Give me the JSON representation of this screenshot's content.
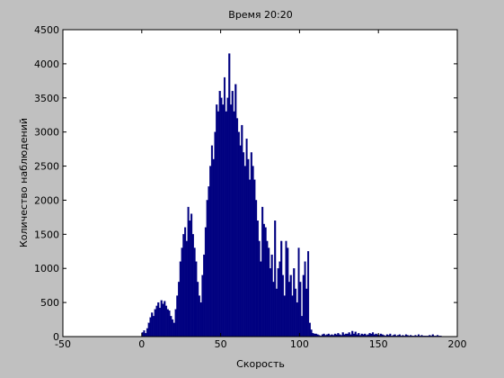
{
  "chart_data": {
    "type": "histogram",
    "title": "Время 20:20",
    "xlabel": "Скорость",
    "ylabel": "Количество наблюдений",
    "color": "#000080",
    "bins": [
      0,
      1,
      2,
      3,
      4,
      5,
      6,
      7,
      8,
      9,
      10,
      11,
      12,
      13,
      14,
      15,
      16,
      17,
      18,
      19,
      20,
      21,
      22,
      23,
      24,
      25,
      26,
      27,
      28,
      29,
      30,
      31,
      32,
      33,
      34,
      35,
      36,
      37,
      38,
      39,
      40,
      41,
      42,
      43,
      44,
      45,
      46,
      47,
      48,
      49,
      50,
      51,
      52,
      53,
      54,
      55,
      56,
      57,
      58,
      59,
      60,
      61,
      62,
      63,
      64,
      65,
      66,
      67,
      68,
      69,
      70,
      71,
      72,
      73,
      74,
      75,
      76,
      77,
      78,
      79,
      80,
      81,
      82,
      83,
      84,
      85,
      86,
      87,
      88,
      89,
      90,
      91,
      92,
      93,
      94,
      95,
      96,
      97,
      98,
      99,
      100,
      101,
      102,
      103,
      104,
      105,
      106,
      107,
      108,
      109,
      110,
      111,
      112,
      113,
      114,
      115,
      116,
      117,
      118,
      119,
      120,
      121,
      122,
      123,
      124,
      125,
      126,
      127,
      128,
      129,
      130,
      131,
      132,
      133,
      134,
      135,
      136,
      137,
      138,
      139,
      140,
      141,
      142,
      143,
      144,
      145,
      146,
      147,
      148,
      149,
      150,
      151,
      152,
      153,
      154,
      155,
      156,
      157,
      158,
      159,
      160,
      161,
      162,
      163,
      164,
      165,
      166,
      167,
      168,
      169,
      170,
      171,
      172,
      173,
      174,
      175,
      176,
      177,
      178,
      179,
      180,
      181,
      182,
      183,
      184,
      185,
      186,
      187,
      188,
      189,
      190
    ],
    "counts": [
      60,
      90,
      50,
      120,
      200,
      280,
      350,
      300,
      400,
      450,
      500,
      420,
      530,
      480,
      520,
      450,
      400,
      380,
      300,
      250,
      200,
      400,
      600,
      800,
      1100,
      1300,
      1500,
      1600,
      1400,
      1900,
      1700,
      1800,
      1500,
      1300,
      1100,
      800,
      600,
      500,
      900,
      1200,
      1600,
      2000,
      2200,
      2500,
      2800,
      2600,
      3000,
      3400,
      3300,
      3600,
      3500,
      3400,
      3800,
      3300,
      3500,
      4150,
      3400,
      3600,
      3300,
      3700,
      3200,
      3000,
      2800,
      3100,
      2700,
      2500,
      2900,
      2600,
      2300,
      2700,
      2500,
      2300,
      2000,
      1700,
      1400,
      1100,
      1900,
      1650,
      1600,
      1400,
      1300,
      1000,
      1200,
      800,
      1700,
      700,
      1000,
      1100,
      1400,
      900,
      600,
      1400,
      1300,
      800,
      900,
      600,
      1000,
      700,
      500,
      1300,
      800,
      300,
      900,
      1100,
      700,
      1250,
      200,
      100,
      50,
      40,
      40,
      30,
      20,
      10,
      30,
      40,
      20,
      30,
      40,
      20,
      30,
      20,
      40,
      30,
      50,
      30,
      20,
      60,
      30,
      40,
      40,
      60,
      30,
      80,
      40,
      70,
      30,
      50,
      20,
      40,
      30,
      40,
      20,
      30,
      50,
      40,
      60,
      30,
      40,
      30,
      20,
      40,
      30,
      20,
      10,
      30,
      20,
      40,
      10,
      20,
      30,
      10,
      20,
      30,
      10,
      20,
      10,
      30,
      20,
      10,
      20,
      10,
      10,
      20,
      10,
      30,
      10,
      20,
      10,
      10,
      10,
      10,
      20,
      10,
      30,
      10,
      10,
      20,
      10,
      10
    ],
    "xlim": [
      -50,
      200
    ],
    "xticks": [
      -50,
      0,
      50,
      100,
      150,
      200
    ],
    "ylim": [
      0,
      4500
    ],
    "yticks": [
      0,
      500,
      1000,
      1500,
      2000,
      2500,
      3000,
      3500,
      4000,
      4500
    ]
  }
}
